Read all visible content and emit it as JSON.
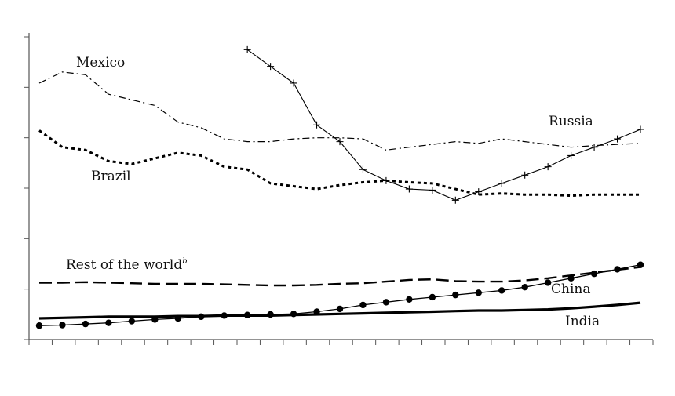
{
  "chart_data": {
    "type": "line",
    "title": "",
    "xlabel": "",
    "ylabel": "",
    "x_tick_count": 27,
    "y_tick_count": 6,
    "ylim": [
      0,
      5.5
    ],
    "x": [
      1,
      2,
      3,
      4,
      5,
      6,
      7,
      8,
      9,
      10,
      11,
      12,
      13,
      14,
      15,
      16,
      17,
      18,
      19,
      20,
      21,
      22,
      23,
      24,
      25,
      26,
      27
    ],
    "series": [
      {
        "name": "Mexico",
        "style": "dash-dot",
        "marker": "none",
        "values": [
          4.6,
          4.8,
          4.75,
          4.4,
          4.3,
          4.2,
          3.9,
          3.8,
          3.6,
          3.55,
          3.55,
          3.6,
          3.62,
          3.62,
          3.6,
          3.4,
          3.45,
          3.5,
          3.55,
          3.52,
          3.6,
          3.55,
          3.5,
          3.45,
          3.48,
          3.5,
          3.52
        ]
      },
      {
        "name": "Brazil",
        "style": "dotted",
        "marker": "none",
        "values": [
          3.75,
          3.45,
          3.4,
          3.2,
          3.15,
          3.25,
          3.35,
          3.3,
          3.1,
          3.05,
          2.8,
          2.75,
          2.7,
          2.77,
          2.82,
          2.85,
          2.82,
          2.8,
          2.7,
          2.6,
          2.62,
          2.6,
          2.6,
          2.58,
          2.6,
          2.6,
          2.6
        ]
      },
      {
        "name": "Russia",
        "style": "solid-thin",
        "marker": "plus",
        "values": [
          null,
          null,
          null,
          null,
          null,
          null,
          null,
          null,
          null,
          5.2,
          4.9,
          4.6,
          3.85,
          3.55,
          3.05,
          2.85,
          2.7,
          2.68,
          2.5,
          2.65,
          2.8,
          2.95,
          3.1,
          3.3,
          3.45,
          3.6,
          3.77
        ]
      },
      {
        "name": "Rest of the world",
        "name_superscript": "b",
        "style": "dashed",
        "marker": "none",
        "values": [
          1.02,
          1.02,
          1.03,
          1.02,
          1.01,
          1.0,
          1.0,
          1.0,
          0.99,
          0.98,
          0.97,
          0.97,
          0.98,
          1.0,
          1.01,
          1.04,
          1.07,
          1.08,
          1.05,
          1.04,
          1.04,
          1.06,
          1.1,
          1.15,
          1.2,
          1.25,
          1.3
        ]
      },
      {
        "name": "China",
        "style": "solid",
        "marker": "dot",
        "values": [
          0.25,
          0.26,
          0.28,
          0.3,
          0.33,
          0.36,
          0.38,
          0.41,
          0.43,
          0.44,
          0.45,
          0.46,
          0.5,
          0.55,
          0.62,
          0.67,
          0.72,
          0.76,
          0.8,
          0.84,
          0.88,
          0.94,
          1.02,
          1.1,
          1.18,
          1.26,
          1.34
        ]
      },
      {
        "name": "India",
        "style": "solid-thick",
        "marker": "none",
        "values": [
          0.38,
          0.39,
          0.4,
          0.41,
          0.41,
          0.41,
          0.42,
          0.42,
          0.43,
          0.43,
          0.43,
          0.44,
          0.45,
          0.46,
          0.47,
          0.48,
          0.49,
          0.5,
          0.51,
          0.52,
          0.52,
          0.53,
          0.54,
          0.56,
          0.59,
          0.62,
          0.66
        ]
      }
    ]
  }
}
